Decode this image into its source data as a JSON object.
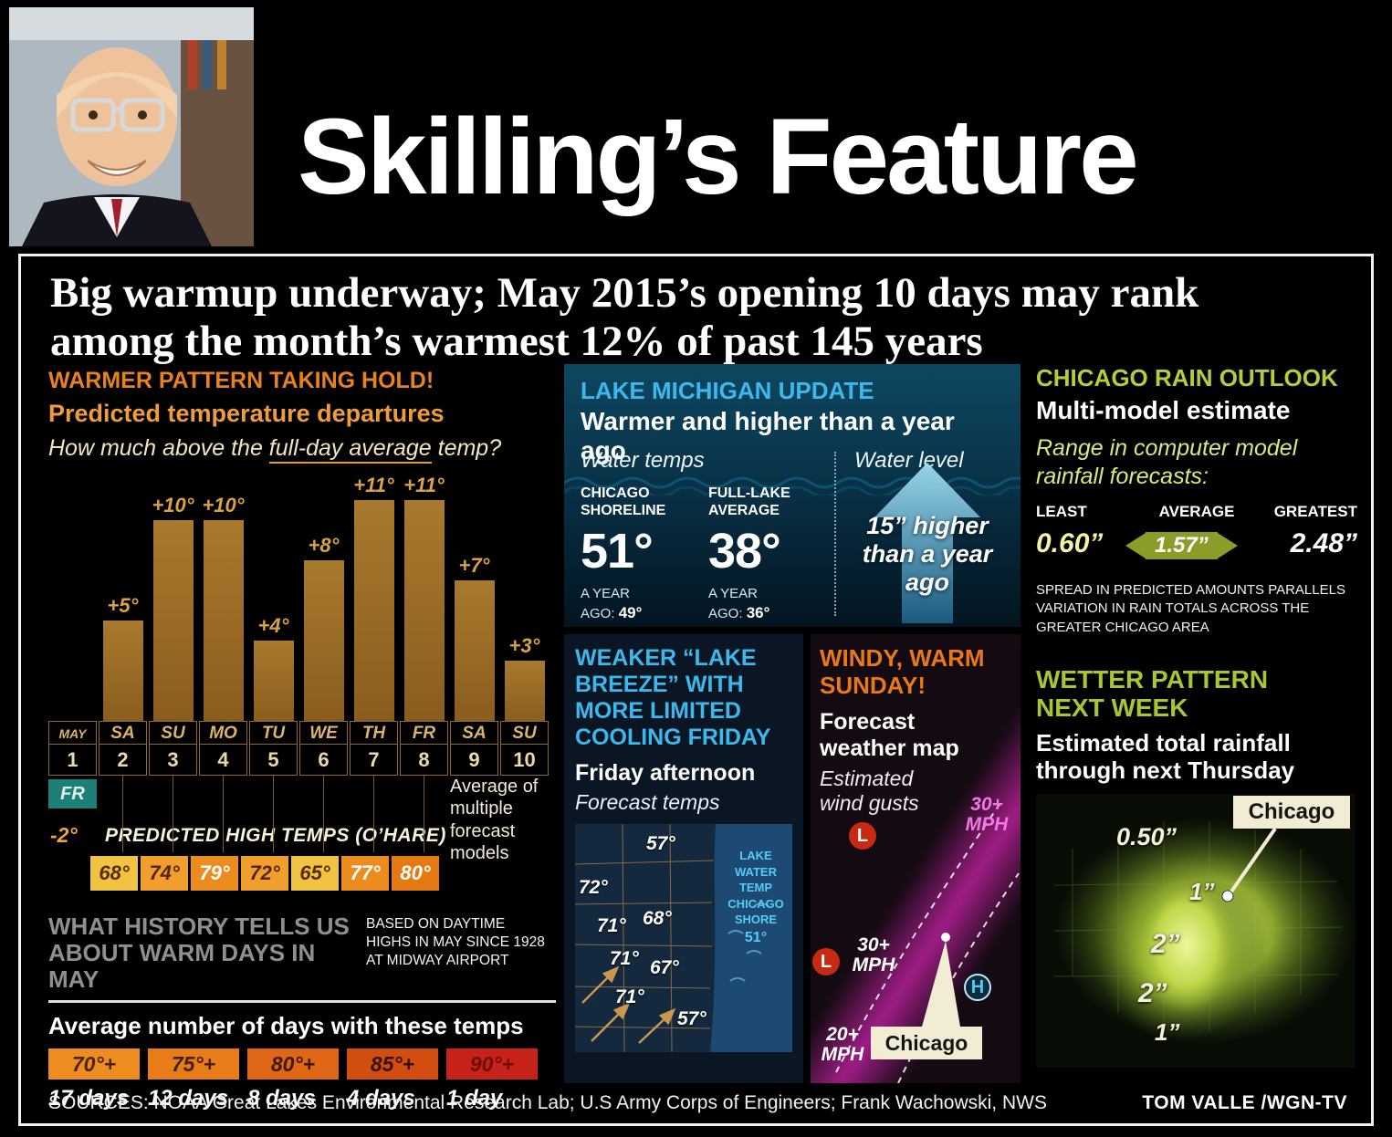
{
  "masthead": {
    "title": "Skilling’s Feature"
  },
  "headline": {
    "line1": "Big warmup underway; May 2015’s opening 10 days may rank",
    "line2": "among the month’s warmest 12% of past 145 years"
  },
  "chart_data": [
    {
      "type": "bar",
      "title": "Predicted temperature departures — how much above the full-day average temp",
      "categories": [
        "MAY 1 (FR)",
        "SA 2",
        "SU 3",
        "MO 4",
        "TU 5",
        "WE 6",
        "TH 7",
        "FR 8",
        "SA 9",
        "SU 10"
      ],
      "values": [
        -2,
        5,
        10,
        10,
        4,
        8,
        11,
        11,
        7,
        3
      ],
      "labels": [
        "-2°",
        "+5°",
        "+10°",
        "+10°",
        "+4°",
        "+8°",
        "+11°",
        "+11°",
        "+7°",
        "+3°"
      ],
      "xlabel": "May 1–10, 2015",
      "ylabel": "Departure from full-day average (°F)",
      "ylim": [
        -2,
        11
      ],
      "annotation": "Average of multiple forecast models",
      "predicted_high_temps_ohare": [
        "68°",
        "74°",
        "79°",
        "72°",
        "65°",
        "77°",
        "80°"
      ]
    },
    {
      "type": "bar",
      "title": "Average number of days with these temps (May highs since 1928, Midway Airport)",
      "categories": [
        "70°+",
        "75°+",
        "80°+",
        "85°+",
        "90°+"
      ],
      "values": [
        17,
        12,
        8,
        4,
        1
      ]
    },
    {
      "type": "table",
      "title": "Lake Michigan update — warmer and higher than a year ago",
      "rows": [
        [
          "Chicago shoreline water temp",
          "51°",
          "a year ago: 49°"
        ],
        [
          "Full-lake average water temp",
          "38°",
          "a year ago: 36°"
        ],
        [
          "Water level",
          "15” higher than a year ago",
          ""
        ]
      ]
    },
    {
      "type": "table",
      "title": "Chicago rain outlook — range in computer model rainfall forecasts",
      "rows": [
        [
          "Least",
          "0.60”"
        ],
        [
          "Average",
          "1.57”"
        ],
        [
          "Greatest",
          "2.48”"
        ]
      ]
    }
  ],
  "warmer": {
    "title": "WARMER PATTERN TAKING HOLD!",
    "subtitle": "Predicted temperature departures",
    "question_prefix": "How much above the ",
    "question_underline": "full-day average",
    "question_suffix": " temp?",
    "columns": [
      {
        "day": "MAY",
        "num": "1",
        "label": "",
        "value": 0
      },
      {
        "day": "SA",
        "num": "2",
        "label": "+5°",
        "value": 5
      },
      {
        "day": "SU",
        "num": "3",
        "label": "+10°",
        "value": 10
      },
      {
        "day": "MO",
        "num": "4",
        "label": "+10°",
        "value": 10
      },
      {
        "day": "TU",
        "num": "5",
        "label": "+4°",
        "value": 4
      },
      {
        "day": "WE",
        "num": "6",
        "label": "+8°",
        "value": 8
      },
      {
        "day": "TH",
        "num": "7",
        "label": "+11°",
        "value": 11
      },
      {
        "day": "FR",
        "num": "8",
        "label": "+11°",
        "value": 11
      },
      {
        "day": "SA",
        "num": "9",
        "label": "+7°",
        "value": 7
      },
      {
        "day": "SU",
        "num": "10",
        "label": "+3°",
        "value": 3
      }
    ],
    "negative_day": "FR",
    "negative_value": "-2°",
    "high_temps_label": "PREDICTED HIGH TEMPS (O’HARE)",
    "high_temps": [
      {
        "label": "68°",
        "bg": "#f2c343",
        "fg": "#5a2d00"
      },
      {
        "label": "74°",
        "bg": "#f09f2e",
        "fg": "#5a2600"
      },
      {
        "label": "79°",
        "bg": "#ec8c1e",
        "fg": "#ffffff"
      },
      {
        "label": "72°",
        "bg": "#f09f2e",
        "fg": "#5a2600"
      },
      {
        "label": "65°",
        "bg": "#f2c343",
        "fg": "#5a2d00"
      },
      {
        "label": "77°",
        "bg": "#ec8c1e",
        "fg": "#ffffff"
      },
      {
        "label": "80°",
        "bg": "#e67a12",
        "fg": "#ffffff"
      }
    ],
    "average_note": "Average of multiple forecast models"
  },
  "history": {
    "title_line1": "WHAT HISTORY TELLS US",
    "title_line2": "ABOUT WARM DAYS IN MAY",
    "note": "BASED ON DAYTIME HIGHS IN MAY SINCE 1928 AT MIDWAY AIRPORT",
    "subtitle": "Average number of days with these temps",
    "items": [
      {
        "temp": "70°+",
        "days": "17 days",
        "color": "#ee8d1f",
        "text": "#4d2400"
      },
      {
        "temp": "75°+",
        "days": "12 days",
        "color": "#e87c19",
        "text": "#461e00"
      },
      {
        "temp": "80°+",
        "days": "8 days",
        "color": "#de6614",
        "text": "#3f1800"
      },
      {
        "temp": "85°+",
        "days": "4 days",
        "color": "#d24d10",
        "text": "#381200"
      },
      {
        "temp": "90°+",
        "days": "1 day",
        "color": "#c6221a",
        "text": "#6e0e08"
      }
    ]
  },
  "lake": {
    "title": "LAKE MICHIGAN UPDATE",
    "subtitle": "Warmer and higher than a year ago",
    "water_temps_label": "Water temps",
    "water_level_label": "Water level",
    "shoreline_name": "CHICAGO SHORELINE",
    "shoreline_temp": "51°",
    "ago_label": "A YEAR AGO:",
    "shoreline_ago": "49°",
    "fulllake_name": "FULL-LAKE AVERAGE",
    "fulllake_temp": "38°",
    "fulllake_ago": "36°",
    "level_line1": "15” higher",
    "level_line2": "than a year",
    "level_line3": "ago"
  },
  "breeze": {
    "title_line1": "WEAKER “LAKE",
    "title_line2": "BREEZE” WITH",
    "title_line3": "MORE LIMITED",
    "title_line4": "COOLING FRIDAY",
    "subtitle": "Friday afternoon",
    "subtitle2": "Forecast temps",
    "lake_lines": [
      "LAKE",
      "WATER",
      "TEMP",
      "CHICAGO",
      "SHORE",
      "51°"
    ],
    "temps": [
      "57°",
      "72°",
      "71°",
      "68°",
      "71°",
      "67°",
      "71°",
      "57°"
    ]
  },
  "windy": {
    "title_line1": "WINDY, WARM",
    "title_line2": "SUNDAY!",
    "subtitle": "Forecast weather map",
    "subtitle2": "Estimated wind gusts",
    "gust_top": "30+ MPH",
    "gust_mid": "30+ MPH",
    "gust_low": "20+ MPH",
    "low_marker": "L",
    "high_marker": "H",
    "city": "Chicago"
  },
  "rain": {
    "title": "CHICAGO RAIN OUTLOOK",
    "subtitle": "Multi-model estimate",
    "desc": "Range in computer model rainfall forecasts:",
    "least_label": "LEAST",
    "average_label": "AVERAGE",
    "greatest_label": "GREATEST",
    "least_value": "0.60”",
    "average_value": "1.57”",
    "greatest_value": "2.48”",
    "note": "SPREAD IN PREDICTED AMOUNTS PARALLELS VARIATION IN RAIN TOTALS ACROSS THE GREATER CHICAGO AREA"
  },
  "wetter": {
    "title_line1": "WETTER PATTERN",
    "title_line2": "NEXT WEEK",
    "subtitle_line1": "Estimated total rainfall",
    "subtitle_line2": "through next Thursday",
    "city": "Chicago",
    "amounts": [
      "0.50”",
      "1”",
      "2”",
      "2”",
      "1”"
    ]
  },
  "footer": {
    "sources": "SOURCES: NOAA Great Lakes Environmental Research Lab; U.S Army Corps of Engineers; Frank Wachowski, NWS",
    "credit": "TOM VALLE /WGN-TV"
  }
}
